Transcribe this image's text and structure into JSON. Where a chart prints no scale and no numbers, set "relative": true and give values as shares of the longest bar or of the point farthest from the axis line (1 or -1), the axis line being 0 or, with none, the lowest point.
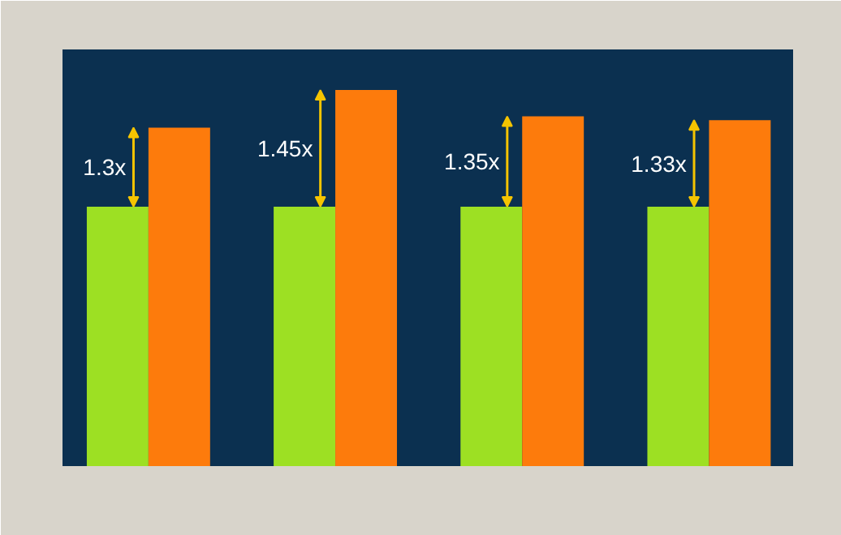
{
  "chart_data": {
    "type": "bar",
    "categories": [
      null,
      null,
      null,
      null
    ],
    "relative": true,
    "series": [
      {
        "color": "#9de023",
        "values": [
          0.69,
          0.69,
          0.69,
          0.69
        ]
      },
      {
        "color": "#fd7b0c",
        "values": [
          0.9,
          1,
          0.93,
          0.92
        ]
      }
    ],
    "annotations": [
      "1.3x",
      "1.45x",
      "1.35x",
      "1.33x"
    ]
  }
}
